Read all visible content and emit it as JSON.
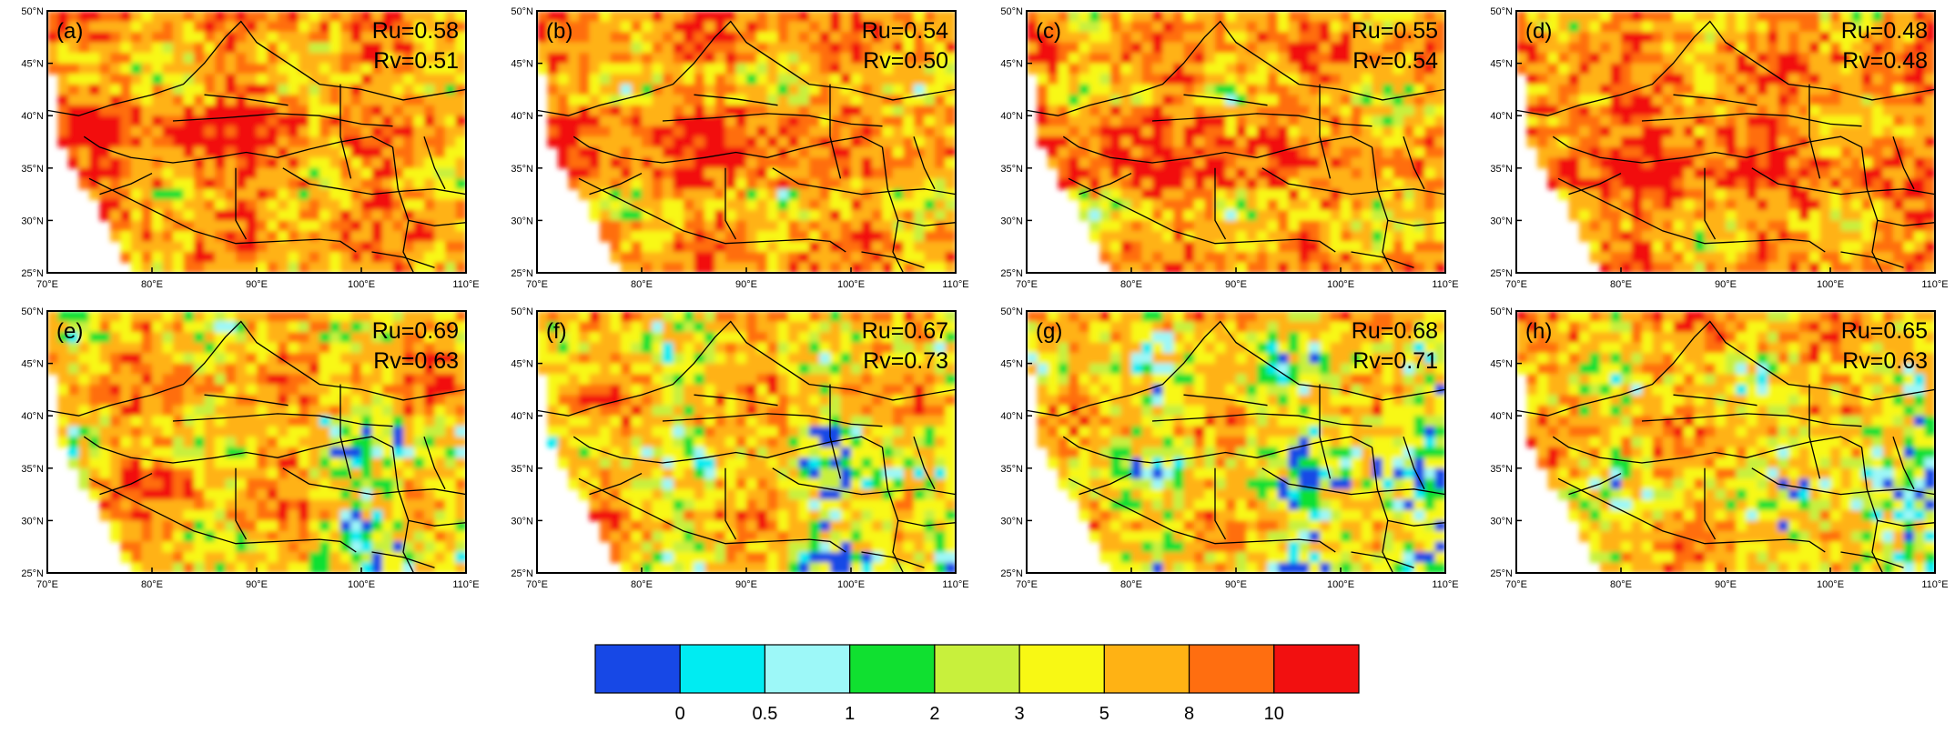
{
  "chart_data": {
    "type": "heatmap",
    "map_extent": {
      "lon": [
        70,
        110
      ],
      "lat": [
        25,
        50
      ]
    },
    "x_tick_labels": [
      "70°E",
      "80°E",
      "90°E",
      "100°E",
      "110°E"
    ],
    "y_tick_labels": [
      "25°N",
      "30°N",
      "35°N",
      "40°N",
      "45°N",
      "50°N"
    ],
    "panels": [
      {
        "label": "(a)",
        "ru": "Ru=0.58",
        "rv": "Rv=0.51",
        "level": 7.0
      },
      {
        "label": "(b)",
        "ru": "Ru=0.54",
        "rv": "Rv=0.50",
        "level": 6.9
      },
      {
        "label": "(c)",
        "ru": "Ru=0.55",
        "rv": "Rv=0.54",
        "level": 6.8
      },
      {
        "label": "(d)",
        "ru": "Ru=0.48",
        "rv": "Rv=0.48",
        "level": 7.4
      },
      {
        "label": "(e)",
        "ru": "Ru=0.69",
        "rv": "Rv=0.63",
        "level": 6.3
      },
      {
        "label": "(f)",
        "ru": "Ru=0.67",
        "rv": "Rv=0.73",
        "level": 5.6
      },
      {
        "label": "(g)",
        "ru": "Ru=0.68",
        "rv": "Rv=0.71",
        "level": 5.0
      },
      {
        "label": "(h)",
        "ru": "Ru=0.65",
        "rv": "Rv=0.63",
        "level": 5.8
      }
    ],
    "colorbar": {
      "colors": [
        "#1748e6",
        "#00ecf2",
        "#9df8f8",
        "#10e030",
        "#c8f03c",
        "#f8f814",
        "#ffb214",
        "#ff6e10",
        "#f21010"
      ],
      "tick_labels": [
        "0",
        "0.5",
        "1",
        "2",
        "3",
        "5",
        "8",
        "10"
      ]
    }
  }
}
